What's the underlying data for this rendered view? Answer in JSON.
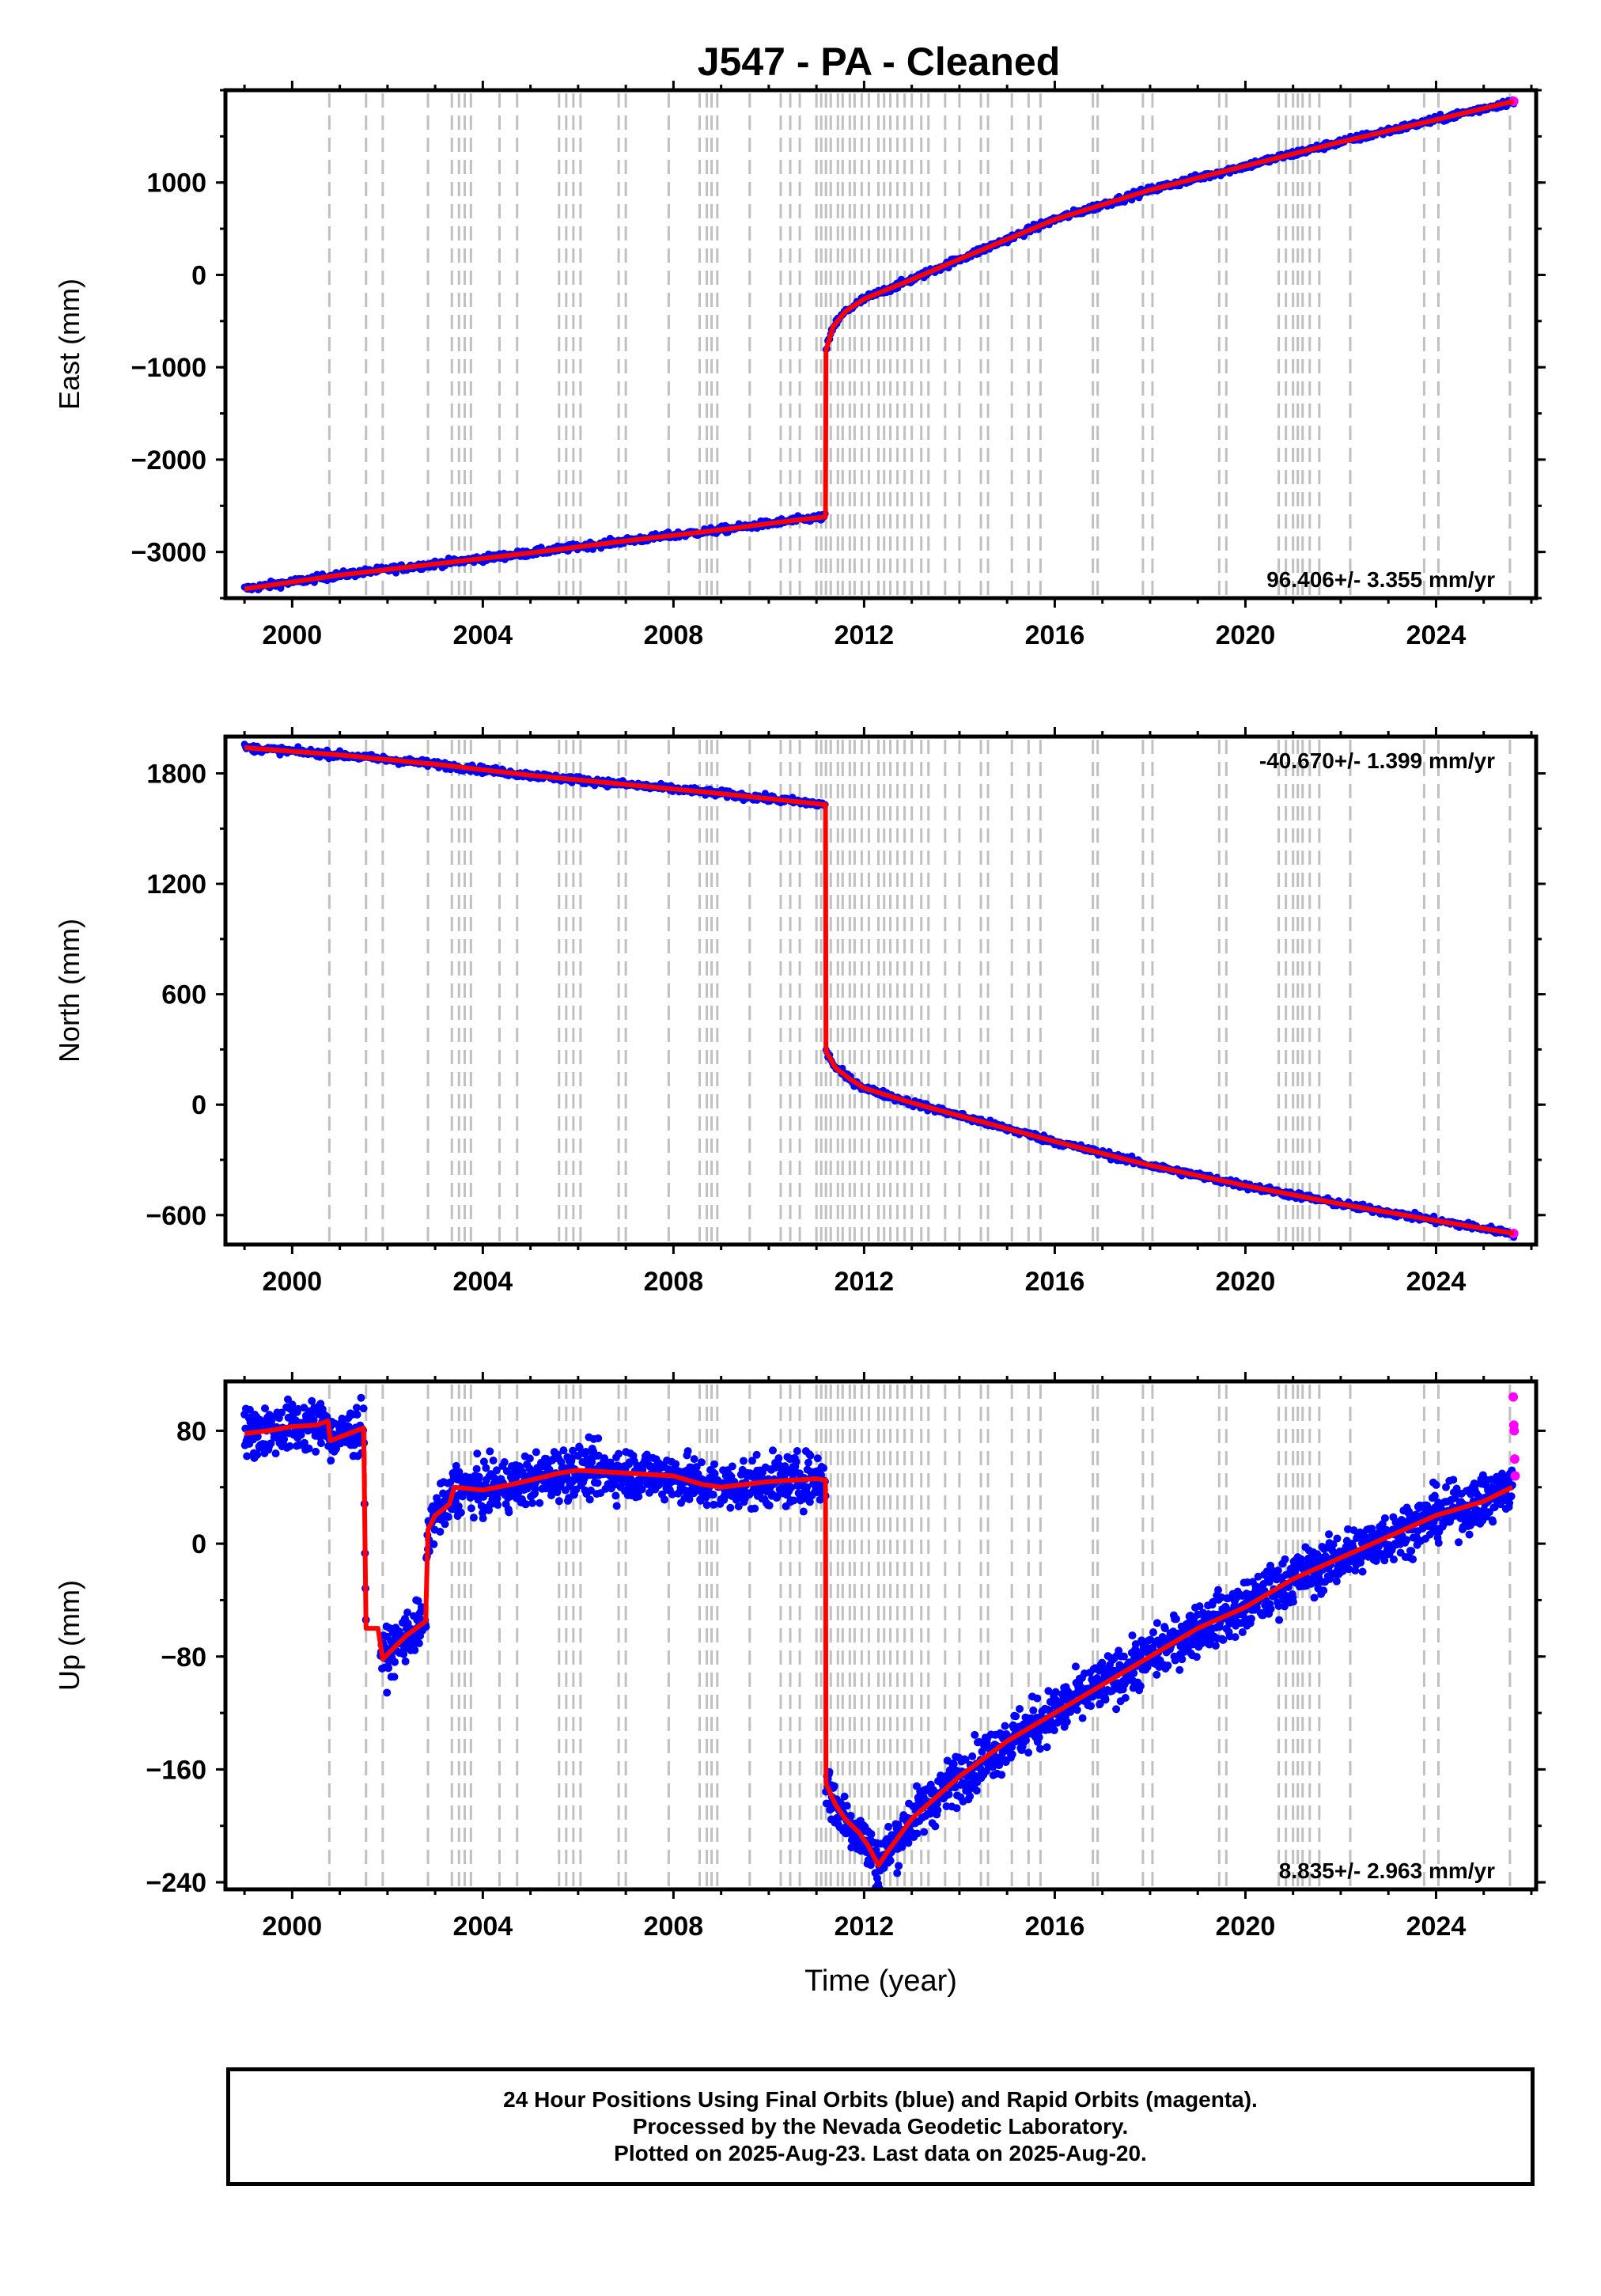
{
  "title": "J547  - PA - Cleaned",
  "colors": {
    "final_orbits": "#0000ff",
    "rapid_orbits": "#ff00ff",
    "model": "#ff0000",
    "event_lines": "#c0c0c0"
  },
  "footer": {
    "line1": "24 Hour Positions Using Final Orbits (blue) and Rapid Orbits (magenta).",
    "line2": "Processed by the Nevada Geodetic Laboratory.",
    "line3": "Plotted on 2025-Aug-23. Last data on 2025-Aug-20."
  },
  "chart_data": [
    {
      "type": "scatter",
      "ylabel": "East (mm)",
      "xlabel": "",
      "xlim": [
        1998.6,
        2026.1
      ],
      "ylim": [
        -3500,
        2000
      ],
      "x_ticks": [
        "2000",
        "2004",
        "2008",
        "2012",
        "2016",
        "2020",
        "2024"
      ],
      "y_ticks": [
        -3000,
        -2000,
        -1000,
        0,
        1000
      ],
      "y_tick_labels": [
        "−3000",
        "−2000",
        "−1000",
        "0",
        "1000"
      ],
      "rate_label": "96.406+/- 3.355 mm/yr",
      "rate_position": "bottom-right",
      "series": [
        {
          "type": "line",
          "color": "#ff0000",
          "x": [
            1999.0,
            2001.0,
            2003.0,
            2005.0,
            2007.0,
            2009.0,
            2010.5,
            2011.19,
            2011.2,
            2011.35,
            2011.6,
            2012.0,
            2013.0,
            2014.0,
            2016.0,
            2018.0,
            2020.0,
            2022.0,
            2024.0,
            2025.63
          ],
          "y": [
            -3400,
            -3250,
            -3130,
            -3010,
            -2880,
            -2760,
            -2660,
            -2620,
            -820,
            -560,
            -400,
            -260,
            -50,
            170,
            600,
            920,
            1180,
            1440,
            1680,
            1880
          ]
        }
      ]
    },
    {
      "type": "scatter",
      "ylabel": "North (mm)",
      "xlabel": "",
      "xlim": [
        1998.6,
        2026.1
      ],
      "ylim": [
        -760,
        2000
      ],
      "x_ticks": [
        "2000",
        "2004",
        "2008",
        "2012",
        "2016",
        "2020",
        "2024"
      ],
      "y_ticks": [
        -600,
        0,
        600,
        1200,
        1800
      ],
      "y_tick_labels": [
        "−600",
        "0",
        "600",
        "1200",
        "1800"
      ],
      "rate_label": "-40.670+/- 1.399 mm/yr",
      "rate_position": "top-right",
      "series": [
        {
          "type": "line",
          "color": "#ff0000",
          "x": [
            1999.0,
            2001.0,
            2003.0,
            2005.0,
            2007.0,
            2009.0,
            2011.19,
            2011.2,
            2011.4,
            2011.7,
            2012.0,
            2013.0,
            2014.0,
            2016.0,
            2018.0,
            2020.0,
            2022.0,
            2024.0,
            2025.63
          ],
          "y": [
            1940,
            1900,
            1850,
            1790,
            1740,
            1690,
            1630,
            290,
            200,
            140,
            90,
            10,
            -60,
            -200,
            -330,
            -440,
            -540,
            -630,
            -700
          ]
        }
      ]
    },
    {
      "type": "scatter",
      "ylabel": "Up (mm)",
      "xlabel": "Time (year)",
      "xlim": [
        1998.6,
        2026.1
      ],
      "ylim": [
        -245,
        115
      ],
      "x_ticks": [
        "2000",
        "2004",
        "2008",
        "2012",
        "2016",
        "2020",
        "2024"
      ],
      "y_ticks": [
        -240,
        -160,
        -80,
        0,
        80
      ],
      "y_tick_labels": [
        "−240",
        "−160",
        "−80",
        "0",
        "80"
      ],
      "rate_label": "8.835+/- 2.963 mm/yr",
      "rate_position": "bottom-right",
      "series": [
        {
          "type": "line",
          "color": "#ff0000",
          "x": [
            1999.0,
            1999.5,
            2000.0,
            2000.5,
            2000.75,
            2000.8,
            2001.5,
            2001.55,
            2001.8,
            2001.9,
            2002.1,
            2002.4,
            2002.8,
            2002.85,
            2003.0,
            2003.3,
            2003.4,
            2004.0,
            2004.6,
            2005.0,
            2005.6,
            2006.0,
            2007.0,
            2008.0,
            2008.6,
            2009.0,
            2010.0,
            2011.0,
            2011.19,
            2011.2,
            2011.4,
            2011.6,
            2011.9,
            2012.1,
            2012.3,
            2012.5,
            2013.0,
            2014.0,
            2015.0,
            2016.0,
            2017.0,
            2018.0,
            2019.0,
            2020.0,
            2021.0,
            2022.0,
            2023.0,
            2024.0,
            2025.0,
            2025.6
          ],
          "y": [
            78,
            80,
            83,
            84,
            87,
            73,
            82,
            -60,
            -60,
            -82,
            -75,
            -65,
            -55,
            10,
            20,
            28,
            40,
            38,
            42,
            45,
            50,
            52,
            50,
            48,
            42,
            40,
            44,
            46,
            45,
            -170,
            -185,
            -195,
            -205,
            -215,
            -228,
            -218,
            -195,
            -165,
            -140,
            -120,
            -100,
            -80,
            -60,
            -45,
            -25,
            -10,
            5,
            20,
            30,
            40
          ]
        }
      ]
    }
  ]
}
